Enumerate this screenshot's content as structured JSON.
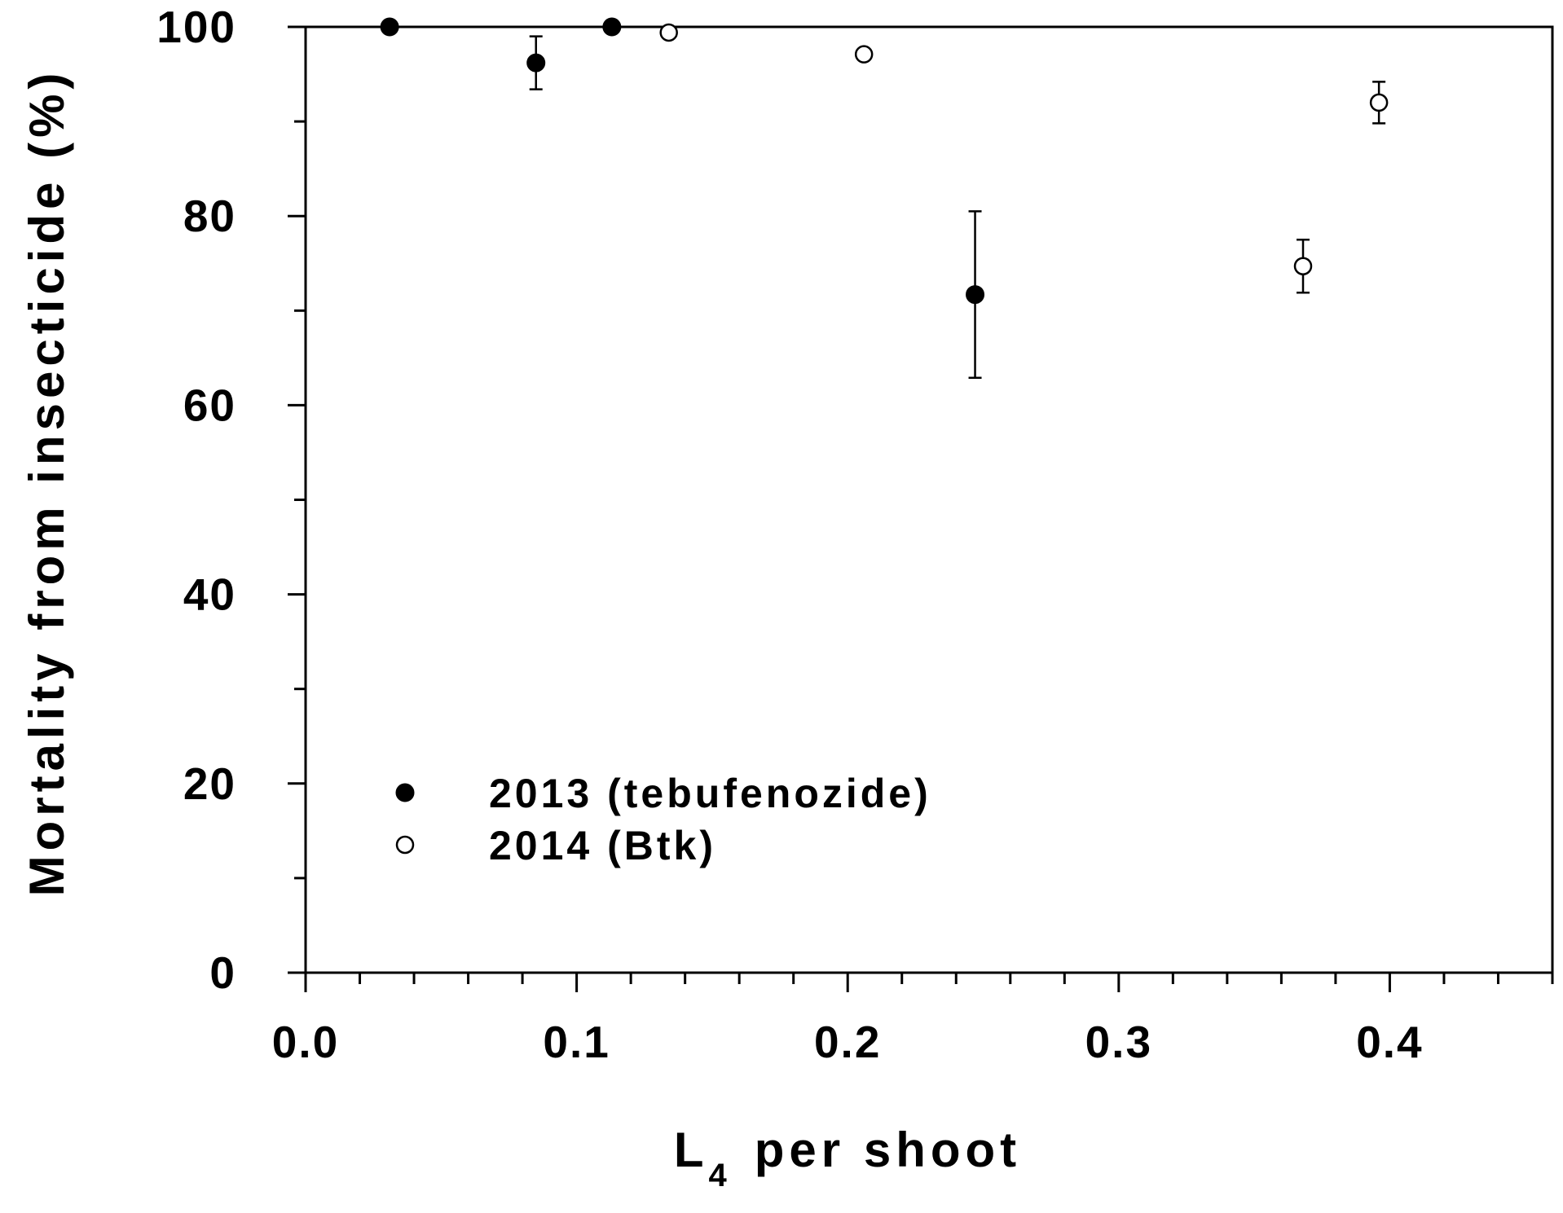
{
  "chart_data": {
    "type": "scatter",
    "title": "",
    "xlabel": {
      "main": "L",
      "subscript": "4",
      "rest": "per shoot"
    },
    "ylabel": "Mortality from insecticide (%)",
    "xlim": [
      0.0,
      0.46
    ],
    "ylim": [
      0,
      100
    ],
    "xticks": [
      "0.0",
      "0.1",
      "0.2",
      "0.3",
      "0.4"
    ],
    "yticks": [
      "0",
      "20",
      "40",
      "60",
      "80",
      "100"
    ],
    "grid": false,
    "legend_position": "lower-left",
    "series": [
      {
        "name": "2013 (tebufenozide)",
        "marker": "filled-circle",
        "color": "#000000",
        "points": [
          {
            "x": 0.031,
            "y": 100.0,
            "err": 0
          },
          {
            "x": 0.085,
            "y": 96.2,
            "err": 2.8
          },
          {
            "x": 0.113,
            "y": 100.0,
            "err": 0
          },
          {
            "x": 0.247,
            "y": 71.7,
            "err": 8.8
          }
        ]
      },
      {
        "name": "2014 (Btk)",
        "marker": "open-circle",
        "color": "#000000",
        "points": [
          {
            "x": 0.134,
            "y": 99.4,
            "err": 0
          },
          {
            "x": 0.206,
            "y": 97.1,
            "err": 0
          },
          {
            "x": 0.368,
            "y": 74.7,
            "err": 2.8
          },
          {
            "x": 0.396,
            "y": 92.0,
            "err": 2.2
          }
        ]
      }
    ]
  }
}
